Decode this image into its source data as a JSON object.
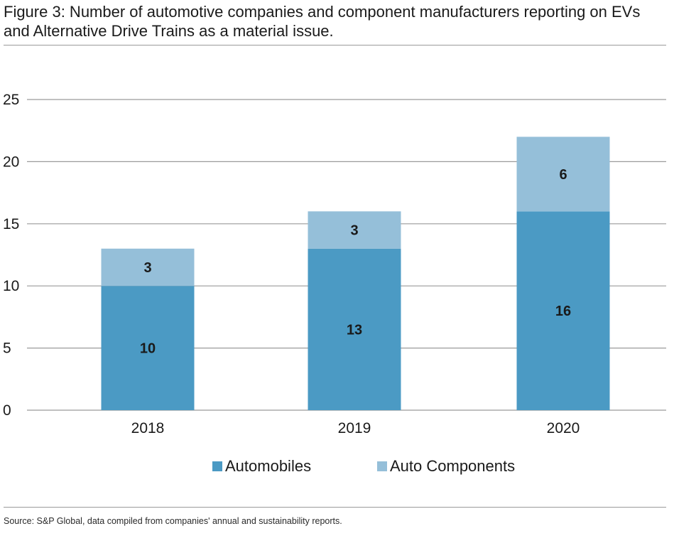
{
  "title": "Figure 3: Number of automotive companies and component manufacturers reporting on EVs and Alternative Drive Trains as a material issue.",
  "source": "Source: S&P Global, data compiled from companies' annual and sustainability reports.",
  "chart_data": {
    "type": "bar",
    "stacked": true,
    "categories": [
      "2018",
      "2019",
      "2020"
    ],
    "series": [
      {
        "name": "Automobiles",
        "values": [
          10,
          13,
          16
        ],
        "color": "#4b9ac4"
      },
      {
        "name": "Auto Components",
        "values": [
          3,
          3,
          6
        ],
        "color": "#95bfd9"
      }
    ],
    "ylim": [
      0,
      25
    ],
    "yticks": [
      "0",
      "5",
      "10",
      "15",
      "20",
      "25"
    ],
    "grid": true,
    "legend_position": "bottom"
  }
}
